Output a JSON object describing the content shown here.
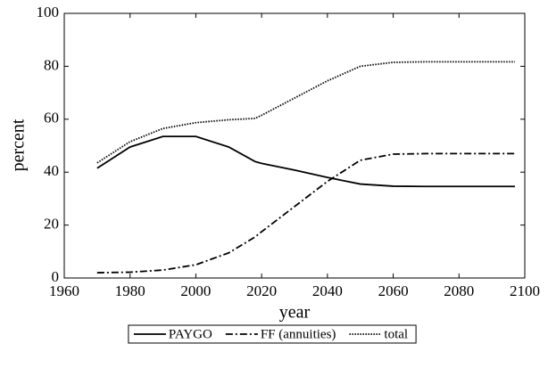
{
  "chart_data": {
    "type": "line",
    "x_label": "year",
    "y_label": "percent",
    "x": [
      1970,
      1980,
      1990,
      2000,
      2010,
      2018,
      2020,
      2030,
      2040,
      2050,
      2060,
      2070,
      2080,
      2090,
      2097
    ],
    "series": [
      {
        "name": "PAYGO",
        "color": "#000000",
        "dash": "solid",
        "values": [
          41.5,
          49.5,
          53.5,
          53.5,
          49.5,
          44,
          43.3,
          40.8,
          38,
          35.5,
          34.7,
          34.6,
          34.6,
          34.6,
          34.6
        ]
      },
      {
        "name": "FF (annuities)",
        "color": "#000000",
        "dash": "dashdot",
        "values": [
          2,
          2.2,
          3,
          5,
          9.5,
          15.5,
          17.5,
          27,
          36.5,
          44.5,
          46.8,
          47,
          47,
          47,
          47
        ]
      },
      {
        "name": "total",
        "color": "#000000",
        "dash": "dotted",
        "values": [
          43.5,
          51.5,
          56.5,
          58.7,
          59.8,
          60.3,
          61.5,
          68,
          74.5,
          80,
          81.5,
          81.7,
          81.7,
          81.7,
          81.7
        ]
      }
    ],
    "xlim": [
      1960,
      2100
    ],
    "xticks": [
      1960,
      1980,
      2000,
      2020,
      2040,
      2060,
      2080,
      2100
    ],
    "ylim": [
      0,
      100
    ],
    "yticks": [
      0,
      20,
      40,
      60,
      80,
      100
    ],
    "grid": false,
    "legend": "bottom"
  }
}
